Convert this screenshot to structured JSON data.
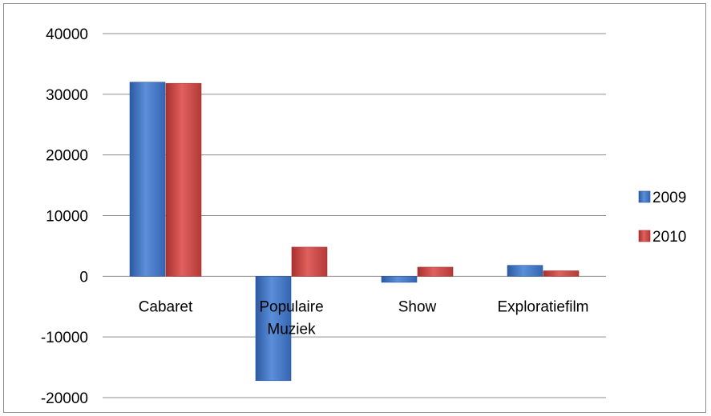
{
  "chart_data": {
    "type": "bar",
    "title": "",
    "xlabel": "",
    "ylabel": "",
    "categories": [
      "Cabaret",
      "Populaire Muziek",
      "Show",
      "Exploratiefilm"
    ],
    "category_lines": [
      [
        "Cabaret"
      ],
      [
        "Populaire",
        "Muziek"
      ],
      [
        "Show"
      ],
      [
        "Exploratiefilm"
      ]
    ],
    "series": [
      {
        "name": "2009",
        "color": "#4a7bc8",
        "values": [
          32000,
          -17200,
          -1000,
          1800
        ]
      },
      {
        "name": "2010",
        "color": "#c94a48",
        "values": [
          31800,
          4800,
          1500,
          900
        ]
      }
    ],
    "ylim": [
      -20000,
      40000
    ],
    "yticks": [
      40000,
      30000,
      20000,
      10000,
      0,
      -10000,
      -20000
    ],
    "grid": true,
    "legend_position": "right"
  }
}
